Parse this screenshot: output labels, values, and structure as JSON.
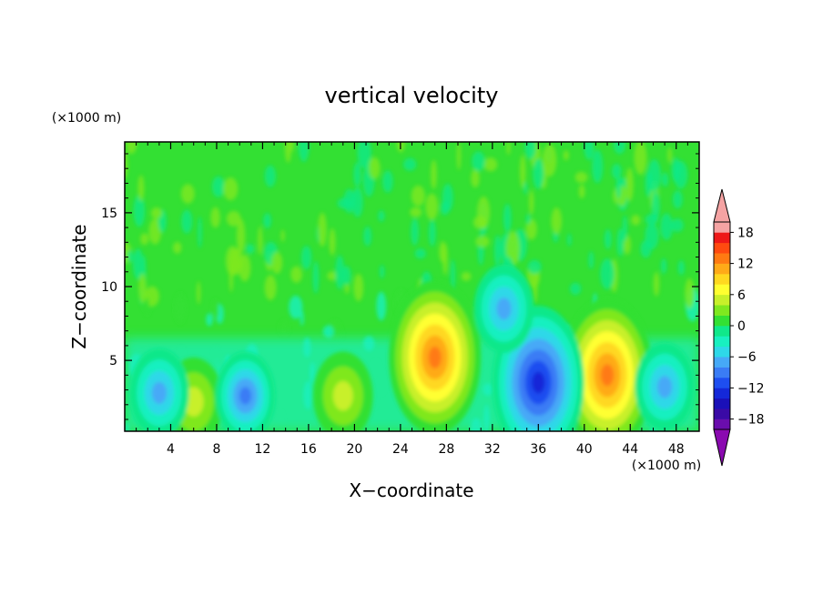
{
  "chart_data": {
    "type": "heatmap",
    "title": "vertical velocity",
    "xlabel": "X−coordinate",
    "ylabel": "Z−coordinate",
    "x_unit": "(×1000 m)",
    "y_unit": "(×1000 m)",
    "xlim": [
      0,
      50
    ],
    "ylim": [
      0.2,
      19.8
    ],
    "x_ticks": [
      "4",
      "8",
      "12",
      "16",
      "20",
      "24",
      "28",
      "32",
      "36",
      "40",
      "44",
      "48"
    ],
    "y_ticks": [
      "5",
      "10",
      "15"
    ],
    "colorbar": {
      "ticks": [
        "18",
        "12",
        "6",
        "0",
        "−6",
        "−12",
        "−18"
      ],
      "levels": [
        -20,
        -18,
        -16,
        -14,
        -12,
        -10,
        -8,
        -6,
        -4,
        -2,
        0,
        2,
        4,
        6,
        8,
        10,
        12,
        14,
        16,
        18,
        20
      ],
      "colors": [
        "#6a0dad",
        "#3a0aa6",
        "#1a10b8",
        "#1428d8",
        "#1e4ef0",
        "#3a7cf5",
        "#46a9f7",
        "#2ed8e8",
        "#18f0c0",
        "#10e88a",
        "#33e033",
        "#7fe81f",
        "#c8f02a",
        "#ffff30",
        "#ffd820",
        "#ffaa18",
        "#ff7a12",
        "#ff4a10",
        "#ee1818",
        "#f5a3a3"
      ],
      "over_color": "#f5a3a3",
      "under_color": "#8a0ab0"
    },
    "features": [
      {
        "x": 6,
        "z": 2.2,
        "value": 5
      },
      {
        "x": 19,
        "z": 2.6,
        "value": 6
      },
      {
        "x": 27,
        "z": 5.2,
        "value": 13
      },
      {
        "x": 42,
        "z": 4.0,
        "value": 14
      },
      {
        "x": 3,
        "z": 2.8,
        "value": -8
      },
      {
        "x": 10.5,
        "z": 2.6,
        "value": -10
      },
      {
        "x": 36,
        "z": 3.5,
        "value": -13
      },
      {
        "x": 33,
        "z": 8.5,
        "value": -8
      },
      {
        "x": 47,
        "z": 3.2,
        "value": -8
      }
    ]
  }
}
